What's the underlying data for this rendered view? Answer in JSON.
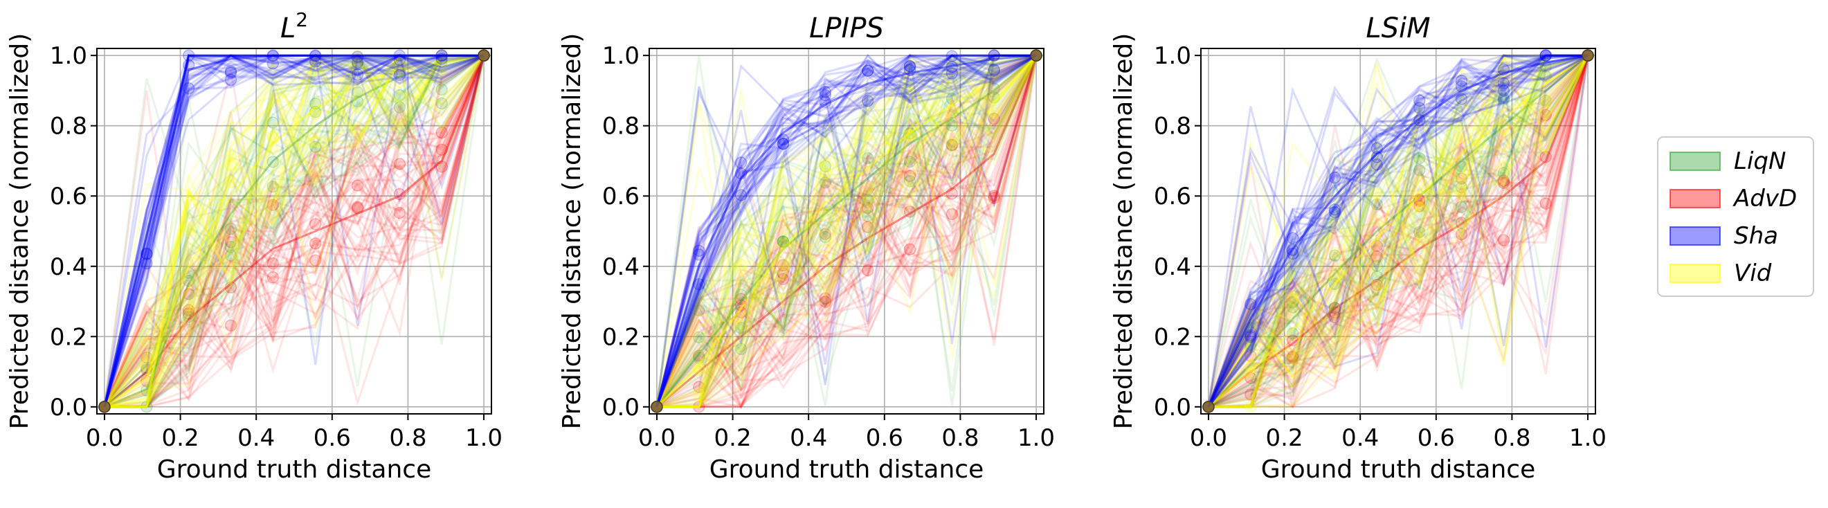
{
  "chart_data": [
    {
      "type": "line",
      "title": "L",
      "title_superscript": "2",
      "xlabel": "Ground truth distance",
      "ylabel": "Predicted distance (normalized)",
      "xlim": [
        0.0,
        1.0
      ],
      "ylim": [
        0.0,
        1.0
      ],
      "x_ticks": [
        "0.0",
        "0.2",
        "0.4",
        "0.6",
        "0.8",
        "1.0"
      ],
      "y_ticks": [
        "0.0",
        "0.2",
        "0.4",
        "0.6",
        "0.8",
        "1.0"
      ],
      "x_levels": [
        0.0,
        0.111,
        0.222,
        0.333,
        0.444,
        0.556,
        0.667,
        0.778,
        0.889,
        1.0
      ],
      "grid": true,
      "series": [
        {
          "name": "LiqN",
          "values": [
            0.0,
            0.05,
            0.35,
            0.55,
            0.7,
            0.8,
            0.88,
            0.94,
            0.98,
            1.0
          ]
        },
        {
          "name": "AdvD",
          "values": [
            0.0,
            0.1,
            0.25,
            0.35,
            0.45,
            0.5,
            0.55,
            0.6,
            0.7,
            1.0
          ]
        },
        {
          "name": "Sha",
          "values": [
            0.0,
            0.45,
            0.96,
            0.99,
            1.0,
            1.0,
            1.0,
            1.0,
            1.0,
            1.0
          ]
        },
        {
          "name": "Vid",
          "values": [
            0.0,
            0.08,
            0.4,
            0.6,
            0.75,
            0.85,
            0.92,
            0.96,
            0.98,
            1.0
          ]
        }
      ]
    },
    {
      "type": "line",
      "title": "LPIPS",
      "xlabel": "Ground truth distance",
      "ylabel": "Predicted distance (normalized)",
      "xlim": [
        0.0,
        1.0
      ],
      "ylim": [
        0.0,
        1.0
      ],
      "x_ticks": [
        "0.0",
        "0.2",
        "0.4",
        "0.6",
        "0.8",
        "1.0"
      ],
      "y_ticks": [
        "0.0",
        "0.2",
        "0.4",
        "0.6",
        "0.8",
        "1.0"
      ],
      "x_levels": [
        0.0,
        0.111,
        0.222,
        0.333,
        0.444,
        0.556,
        0.667,
        0.778,
        0.889,
        1.0
      ],
      "grid": true,
      "series": [
        {
          "name": "LiqN",
          "values": [
            0.0,
            0.15,
            0.3,
            0.45,
            0.55,
            0.65,
            0.75,
            0.82,
            0.9,
            1.0
          ]
        },
        {
          "name": "AdvD",
          "values": [
            0.0,
            0.1,
            0.2,
            0.3,
            0.4,
            0.48,
            0.55,
            0.62,
            0.72,
            1.0
          ]
        },
        {
          "name": "Sha",
          "values": [
            0.0,
            0.4,
            0.65,
            0.78,
            0.86,
            0.92,
            0.95,
            0.97,
            0.99,
            1.0
          ]
        },
        {
          "name": "Vid",
          "values": [
            0.0,
            0.12,
            0.28,
            0.45,
            0.58,
            0.68,
            0.78,
            0.86,
            0.93,
            1.0
          ]
        }
      ]
    },
    {
      "type": "line",
      "title": "LSiM",
      "xlabel": "Ground truth distance",
      "ylabel": "Predicted distance (normalized)",
      "xlim": [
        0.0,
        1.0
      ],
      "ylim": [
        0.0,
        1.0
      ],
      "x_ticks": [
        "0.0",
        "0.2",
        "0.4",
        "0.6",
        "0.8",
        "1.0"
      ],
      "y_ticks": [
        "0.0",
        "0.2",
        "0.4",
        "0.6",
        "0.8",
        "1.0"
      ],
      "x_levels": [
        0.0,
        0.111,
        0.222,
        0.333,
        0.444,
        0.556,
        0.667,
        0.778,
        0.889,
        1.0
      ],
      "grid": true,
      "series": [
        {
          "name": "LiqN",
          "values": [
            0.0,
            0.12,
            0.25,
            0.38,
            0.5,
            0.6,
            0.7,
            0.8,
            0.9,
            1.0
          ]
        },
        {
          "name": "AdvD",
          "values": [
            0.0,
            0.1,
            0.18,
            0.28,
            0.36,
            0.45,
            0.52,
            0.6,
            0.7,
            1.0
          ]
        },
        {
          "name": "Sha",
          "values": [
            0.0,
            0.25,
            0.45,
            0.6,
            0.72,
            0.82,
            0.9,
            0.95,
            0.98,
            1.0
          ]
        },
        {
          "name": "Vid",
          "values": [
            0.0,
            0.1,
            0.22,
            0.35,
            0.48,
            0.6,
            0.72,
            0.82,
            0.92,
            1.0
          ]
        }
      ]
    }
  ],
  "legend": {
    "placement": "right",
    "items": [
      {
        "label": "LiqN",
        "color": "#2ca02c"
      },
      {
        "label": "AdvD",
        "color": "#ff0000"
      },
      {
        "label": "Sha",
        "color": "#0000ff"
      },
      {
        "label": "Vid",
        "color": "#ffff00"
      }
    ]
  }
}
